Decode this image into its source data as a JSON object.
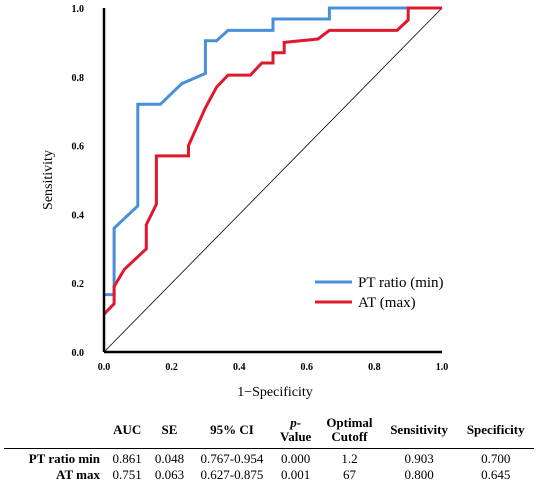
{
  "chart_data": {
    "type": "line",
    "xlabel": "1−Specificity",
    "ylabel": "Sensitivity",
    "xlim": [
      0,
      1
    ],
    "ylim": [
      0,
      1
    ],
    "x_ticks": [
      "0.0",
      "0.2",
      "0.4",
      "0.6",
      "0.8",
      "1.0"
    ],
    "y_ticks": [
      "0.0",
      "0.2",
      "0.4",
      "0.6",
      "0.8",
      "1.0"
    ],
    "reference_line": true,
    "legend_position": "bottom-right",
    "series": [
      {
        "name": "PT ratio (min)",
        "color": "#4a90d9",
        "points": [
          [
            0,
            0.167
          ],
          [
            0.03,
            0.167
          ],
          [
            0.03,
            0.36
          ],
          [
            0.1,
            0.425
          ],
          [
            0.1,
            0.72
          ],
          [
            0.167,
            0.72
          ],
          [
            0.23,
            0.78
          ],
          [
            0.3,
            0.81
          ],
          [
            0.3,
            0.905
          ],
          [
            0.333,
            0.905
          ],
          [
            0.367,
            0.935
          ],
          [
            0.5,
            0.935
          ],
          [
            0.5,
            0.968
          ],
          [
            0.667,
            0.968
          ],
          [
            0.667,
            1.0
          ],
          [
            1.0,
            1.0
          ]
        ]
      },
      {
        "name": "AT (max)",
        "color": "#e0182d",
        "points": [
          [
            0,
            0.11
          ],
          [
            0.03,
            0.14
          ],
          [
            0.03,
            0.19
          ],
          [
            0.06,
            0.24
          ],
          [
            0.125,
            0.3
          ],
          [
            0.125,
            0.37
          ],
          [
            0.155,
            0.43
          ],
          [
            0.155,
            0.57
          ],
          [
            0.25,
            0.57
          ],
          [
            0.25,
            0.6
          ],
          [
            0.3,
            0.71
          ],
          [
            0.333,
            0.77
          ],
          [
            0.367,
            0.805
          ],
          [
            0.433,
            0.805
          ],
          [
            0.467,
            0.84
          ],
          [
            0.5,
            0.84
          ],
          [
            0.5,
            0.87
          ],
          [
            0.533,
            0.87
          ],
          [
            0.533,
            0.9
          ],
          [
            0.633,
            0.91
          ],
          [
            0.667,
            0.935
          ],
          [
            0.867,
            0.935
          ],
          [
            0.9,
            0.965
          ],
          [
            0.9,
            0.985
          ],
          [
            0.9,
            1.0
          ],
          [
            1.0,
            1.0
          ]
        ]
      }
    ]
  },
  "table": {
    "headers": [
      "",
      "AUC",
      "SE",
      "95% CI",
      "p-Value",
      "Optimal Cutoff",
      "Sensitivity",
      "Specificity"
    ],
    "header_parts": {
      "pvalue_italic": "p-",
      "pvalue_rest": "Value",
      "cutoff_line1": "Optimal",
      "cutoff_line2": "Cutoff"
    },
    "rows": [
      {
        "label": "PT ratio min",
        "auc": "0.861",
        "se": "0.048",
        "ci": "0.767-0.954",
        "p": "0.000",
        "cutoff": "1.2",
        "sensitivity": "0.903",
        "specificity": "0.700"
      },
      {
        "label": "AT max",
        "auc": "0.751",
        "se": "0.063",
        "ci": "0.627-0.875",
        "p": "0.001",
        "cutoff": "67",
        "sensitivity": "0.800",
        "specificity": "0.645"
      }
    ]
  }
}
